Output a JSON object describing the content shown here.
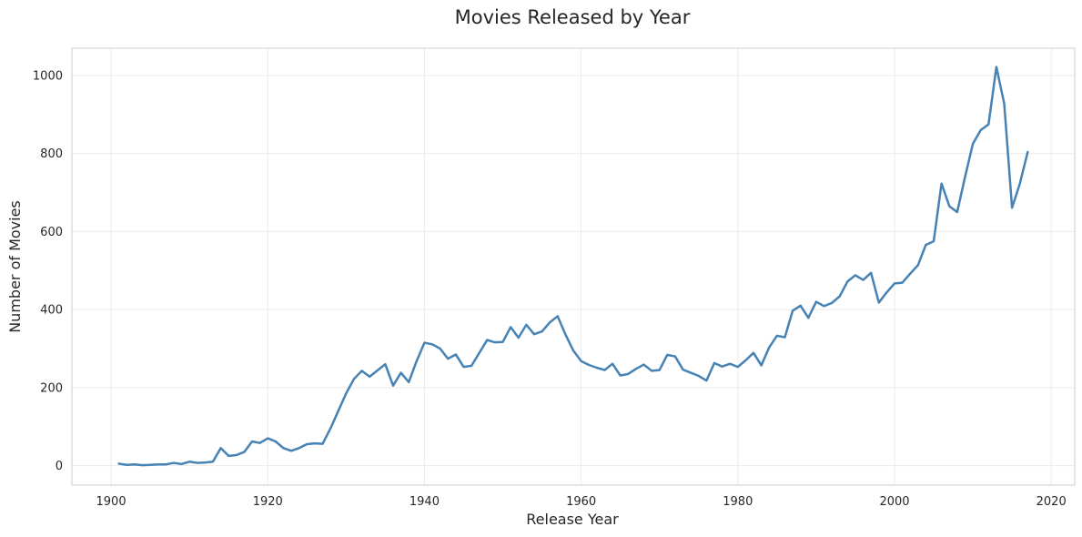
{
  "chart_data": {
    "type": "line",
    "title": "Movies Released by Year",
    "xlabel": "Release Year",
    "ylabel": "Number of Movies",
    "xlim": [
      1895,
      2023
    ],
    "ylim": [
      -50,
      1070
    ],
    "xticks": [
      1900,
      1920,
      1940,
      1960,
      1980,
      2000,
      2020
    ],
    "yticks": [
      0,
      200,
      400,
      600,
      800,
      1000
    ],
    "grid": true,
    "legend": "none",
    "line_color": "#4682b4",
    "series": [
      {
        "x": [
          1901,
          1902,
          1903,
          1904,
          1905,
          1906,
          1907,
          1908,
          1909,
          1910,
          1911,
          1912,
          1913,
          1914,
          1915,
          1916,
          1917,
          1918,
          1919,
          1920,
          1921,
          1922,
          1923,
          1924,
          1925,
          1926,
          1927,
          1928,
          1929,
          1930,
          1931,
          1932,
          1933,
          1934,
          1935,
          1936,
          1937,
          1938,
          1939,
          1940,
          1941,
          1942,
          1943,
          1944,
          1945,
          1946,
          1947,
          1948,
          1949,
          1950,
          1951,
          1952,
          1953,
          1954,
          1955,
          1956,
          1957,
          1958,
          1959,
          1960,
          1961,
          1962,
          1963,
          1964,
          1965,
          1966,
          1967,
          1968,
          1969,
          1970,
          1971,
          1972,
          1973,
          1974,
          1975,
          1976,
          1977,
          1978,
          1979,
          1980,
          1981,
          1982,
          1983,
          1984,
          1985,
          1986,
          1987,
          1988,
          1989,
          1990,
          1991,
          1992,
          1993,
          1994,
          1995,
          1996,
          1997,
          1998,
          1999,
          2000,
          2001,
          2002,
          2003,
          2004,
          2005,
          2006,
          2007,
          2008,
          2009,
          2010,
          2011,
          2012,
          2013,
          2014,
          2015,
          2016,
          2017
        ],
        "values": [
          5,
          2,
          3,
          1,
          2,
          3,
          3,
          7,
          4,
          10,
          7,
          8,
          10,
          45,
          25,
          27,
          35,
          62,
          58,
          70,
          62,
          45,
          38,
          45,
          55,
          57,
          56,
          95,
          140,
          185,
          222,
          243,
          228,
          244,
          260,
          205,
          238,
          214,
          268,
          315,
          311,
          300,
          274,
          285,
          253,
          256,
          289,
          322,
          316,
          317,
          355,
          328,
          361,
          337,
          344,
          367,
          383,
          336,
          295,
          268,
          258,
          251,
          245,
          261,
          231,
          235,
          248,
          259,
          243,
          245,
          284,
          280,
          246,
          238,
          230,
          218,
          263,
          254,
          261,
          253,
          270,
          289,
          257,
          303,
          333,
          329,
          397,
          410,
          379,
          420,
          409,
          417,
          434,
          472,
          488,
          476,
          494,
          418,
          444,
          467,
          469,
          492,
          514,
          566,
          575,
          723,
          665,
          650,
          740,
          825,
          860,
          875,
          1022,
          928,
          661,
          723,
          804
        ]
      }
    ]
  }
}
